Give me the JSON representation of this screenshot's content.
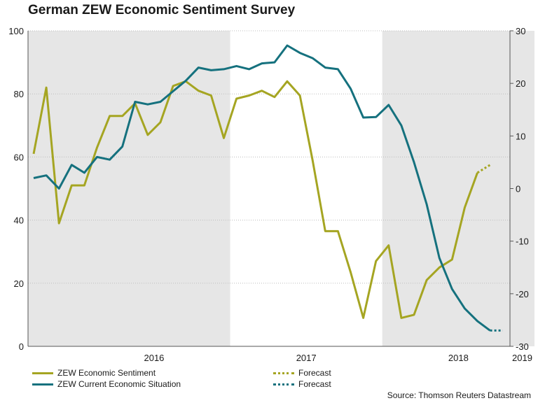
{
  "chart_data": {
    "type": "line",
    "title": "German ZEW Economic Sentiment Survey",
    "source": "Source: Thomson Reuters Datastream",
    "colors": {
      "sentiment": "#a5a522",
      "situation": "#15717e",
      "shade": "#e6e6e6"
    },
    "left_axis": {
      "min": 0,
      "max": 100,
      "ticks": [
        "0",
        "20",
        "40",
        "60",
        "80",
        "100"
      ]
    },
    "right_axis": {
      "min": -30,
      "max": 30,
      "ticks": [
        "-30",
        "-20",
        "-10",
        "0",
        "10",
        "20",
        "30"
      ]
    },
    "year_labels": [
      "2016",
      "2017",
      "2018",
      "2019"
    ],
    "x_months": [
      "2015-09",
      "2015-10",
      "2015-11",
      "2015-12",
      "2016-01",
      "2016-02",
      "2016-03",
      "2016-04",
      "2016-05",
      "2016-06",
      "2016-07",
      "2016-08",
      "2016-09",
      "2016-10",
      "2016-11",
      "2016-12",
      "2017-01",
      "2017-02",
      "2017-03",
      "2017-04",
      "2017-05",
      "2017-06",
      "2017-07",
      "2017-08",
      "2017-09",
      "2017-10",
      "2017-11",
      "2017-12",
      "2018-01",
      "2018-02",
      "2018-03",
      "2018-04",
      "2018-05",
      "2018-06",
      "2018-07",
      "2018-08",
      "2018-09",
      "2018-10",
      "2018-11",
      "2018-12",
      "2019-01",
      "2019-02",
      "2019-03",
      "2019-04",
      "2019-05"
    ],
    "series": [
      {
        "name": "ZEW Economic Sentiment",
        "axis": "left",
        "values": [
          61,
          82,
          39,
          51,
          51,
          63,
          73,
          73,
          77,
          67,
          71,
          82.5,
          84,
          81,
          79.5,
          66,
          78.5,
          79.5,
          81,
          79,
          84,
          79.5,
          59,
          36.5,
          36.5,
          23.5,
          9,
          27,
          32,
          9,
          10,
          21,
          25,
          27.5,
          44,
          55
        ]
      },
      {
        "name": "ZEW Current Economic Situation",
        "axis": "right",
        "values": [
          2,
          2.5,
          0,
          4.5,
          3,
          6,
          5.5,
          8,
          16.5,
          16,
          16.5,
          18.5,
          20.5,
          23,
          22.5,
          22.7,
          23.3,
          22.7,
          23.8,
          24,
          27.2,
          25.8,
          24.8,
          23,
          22.7,
          19,
          13.5,
          13.6,
          15.9,
          12,
          5,
          -3,
          -13.2,
          -19.1,
          -22.8,
          -25.2,
          -27
        ]
      }
    ],
    "forecast": [
      {
        "name": "Forecast",
        "axis": "left",
        "values": [
          55,
          57.5
        ]
      },
      {
        "name": "Forecast",
        "axis": "right",
        "values": [
          -27,
          -27
        ]
      }
    ],
    "shaded_periods": [
      [
        "2015-09",
        "2016-12"
      ],
      [
        "2018-01",
        "2018-12"
      ]
    ]
  }
}
